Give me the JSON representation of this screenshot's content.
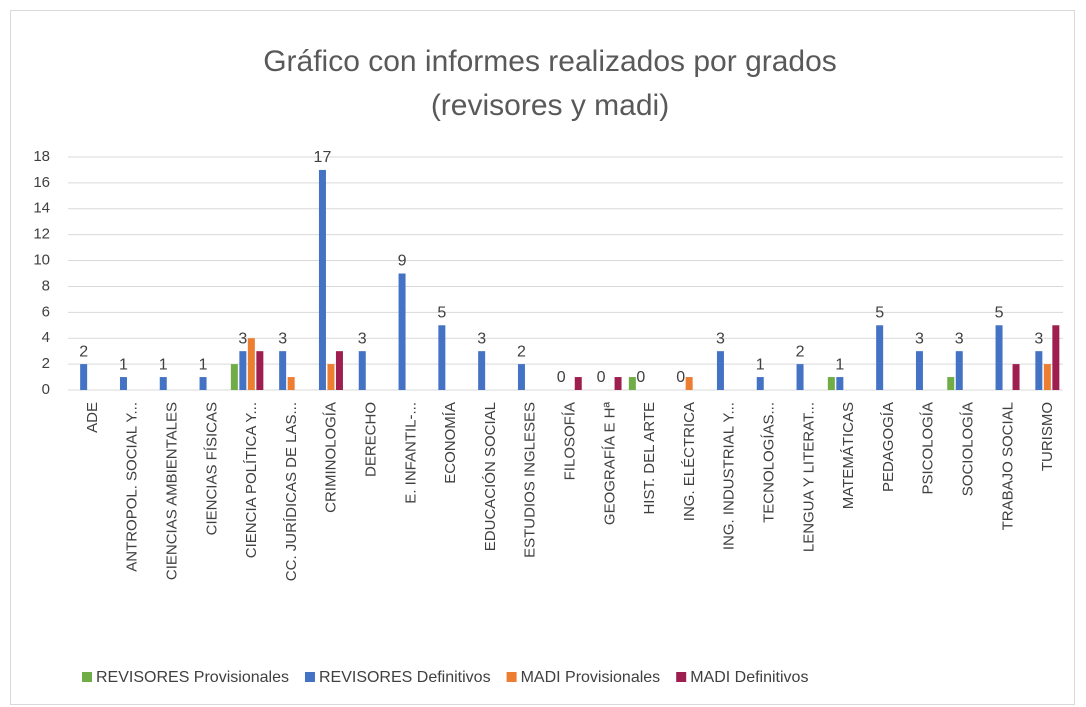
{
  "chart_data": {
    "type": "bar",
    "title": "Gráfico con informes realizados por  grados (revisores y madi)",
    "categories": [
      "ADE",
      "ANTROPOL. SOCIAL Y...",
      "CIENCIAS AMBIENTALES",
      "CIENCIAS FÍSICAS",
      "CIENCIA POLÍTICA Y...",
      "CC. JURÍDICAS DE LAS...",
      "CRIMINOLOGÍA",
      "DERECHO",
      "E. INFANTIL-...",
      "ECONOMÍA",
      "EDUCACIÓN SOCIAL",
      "ESTUDIOS INGLESES",
      "FILOSOFÍA",
      "GEOGRAFÍA E Hª",
      "HIST. DEL ARTE",
      "ING. ELÉCTRICA",
      "ING. INDUSTRIAL Y...",
      "TECNOLOGÍAS...",
      "LENGUA Y LITERAT...",
      "MATEMÁTICAS",
      "PEDAGOGÍA",
      "PSICOLOGÍA",
      "SOCIOLOGÍA",
      "TRABAJO SOCIAL",
      "TURISMO"
    ],
    "series": [
      {
        "name": "REVISORES Provisionales",
        "color": "#70ad47",
        "values": [
          0,
          0,
          0,
          0,
          2,
          0,
          0,
          0,
          0,
          0,
          0,
          0,
          0,
          0,
          1,
          0,
          0,
          0,
          0,
          1,
          0,
          0,
          1,
          0,
          0
        ]
      },
      {
        "name": "REVISORES Definitivos",
        "color": "#4472c4",
        "data_labels": true,
        "values": [
          2,
          1,
          1,
          1,
          3,
          3,
          17,
          3,
          9,
          5,
          3,
          2,
          0,
          0,
          0,
          0,
          3,
          1,
          2,
          1,
          5,
          3,
          3,
          5,
          3
        ]
      },
      {
        "name": "MADI Provisionales",
        "color": "#ed7d31",
        "values": [
          0,
          0,
          0,
          0,
          4,
          1,
          2,
          0,
          0,
          0,
          0,
          0,
          0,
          0,
          0,
          1,
          0,
          0,
          0,
          0,
          0,
          0,
          0,
          0,
          2
        ]
      },
      {
        "name": "MADI Definitivos",
        "color": "#9e1f4f",
        "values": [
          0,
          0,
          0,
          0,
          3,
          0,
          3,
          0,
          0,
          0,
          0,
          0,
          1,
          1,
          0,
          0,
          0,
          0,
          0,
          0,
          0,
          0,
          0,
          2,
          5
        ]
      }
    ],
    "ylim": [
      0,
      18
    ],
    "yticks": [
      0,
      2,
      4,
      6,
      8,
      10,
      12,
      14,
      16,
      18
    ],
    "grid": true,
    "legend": "bottom"
  }
}
